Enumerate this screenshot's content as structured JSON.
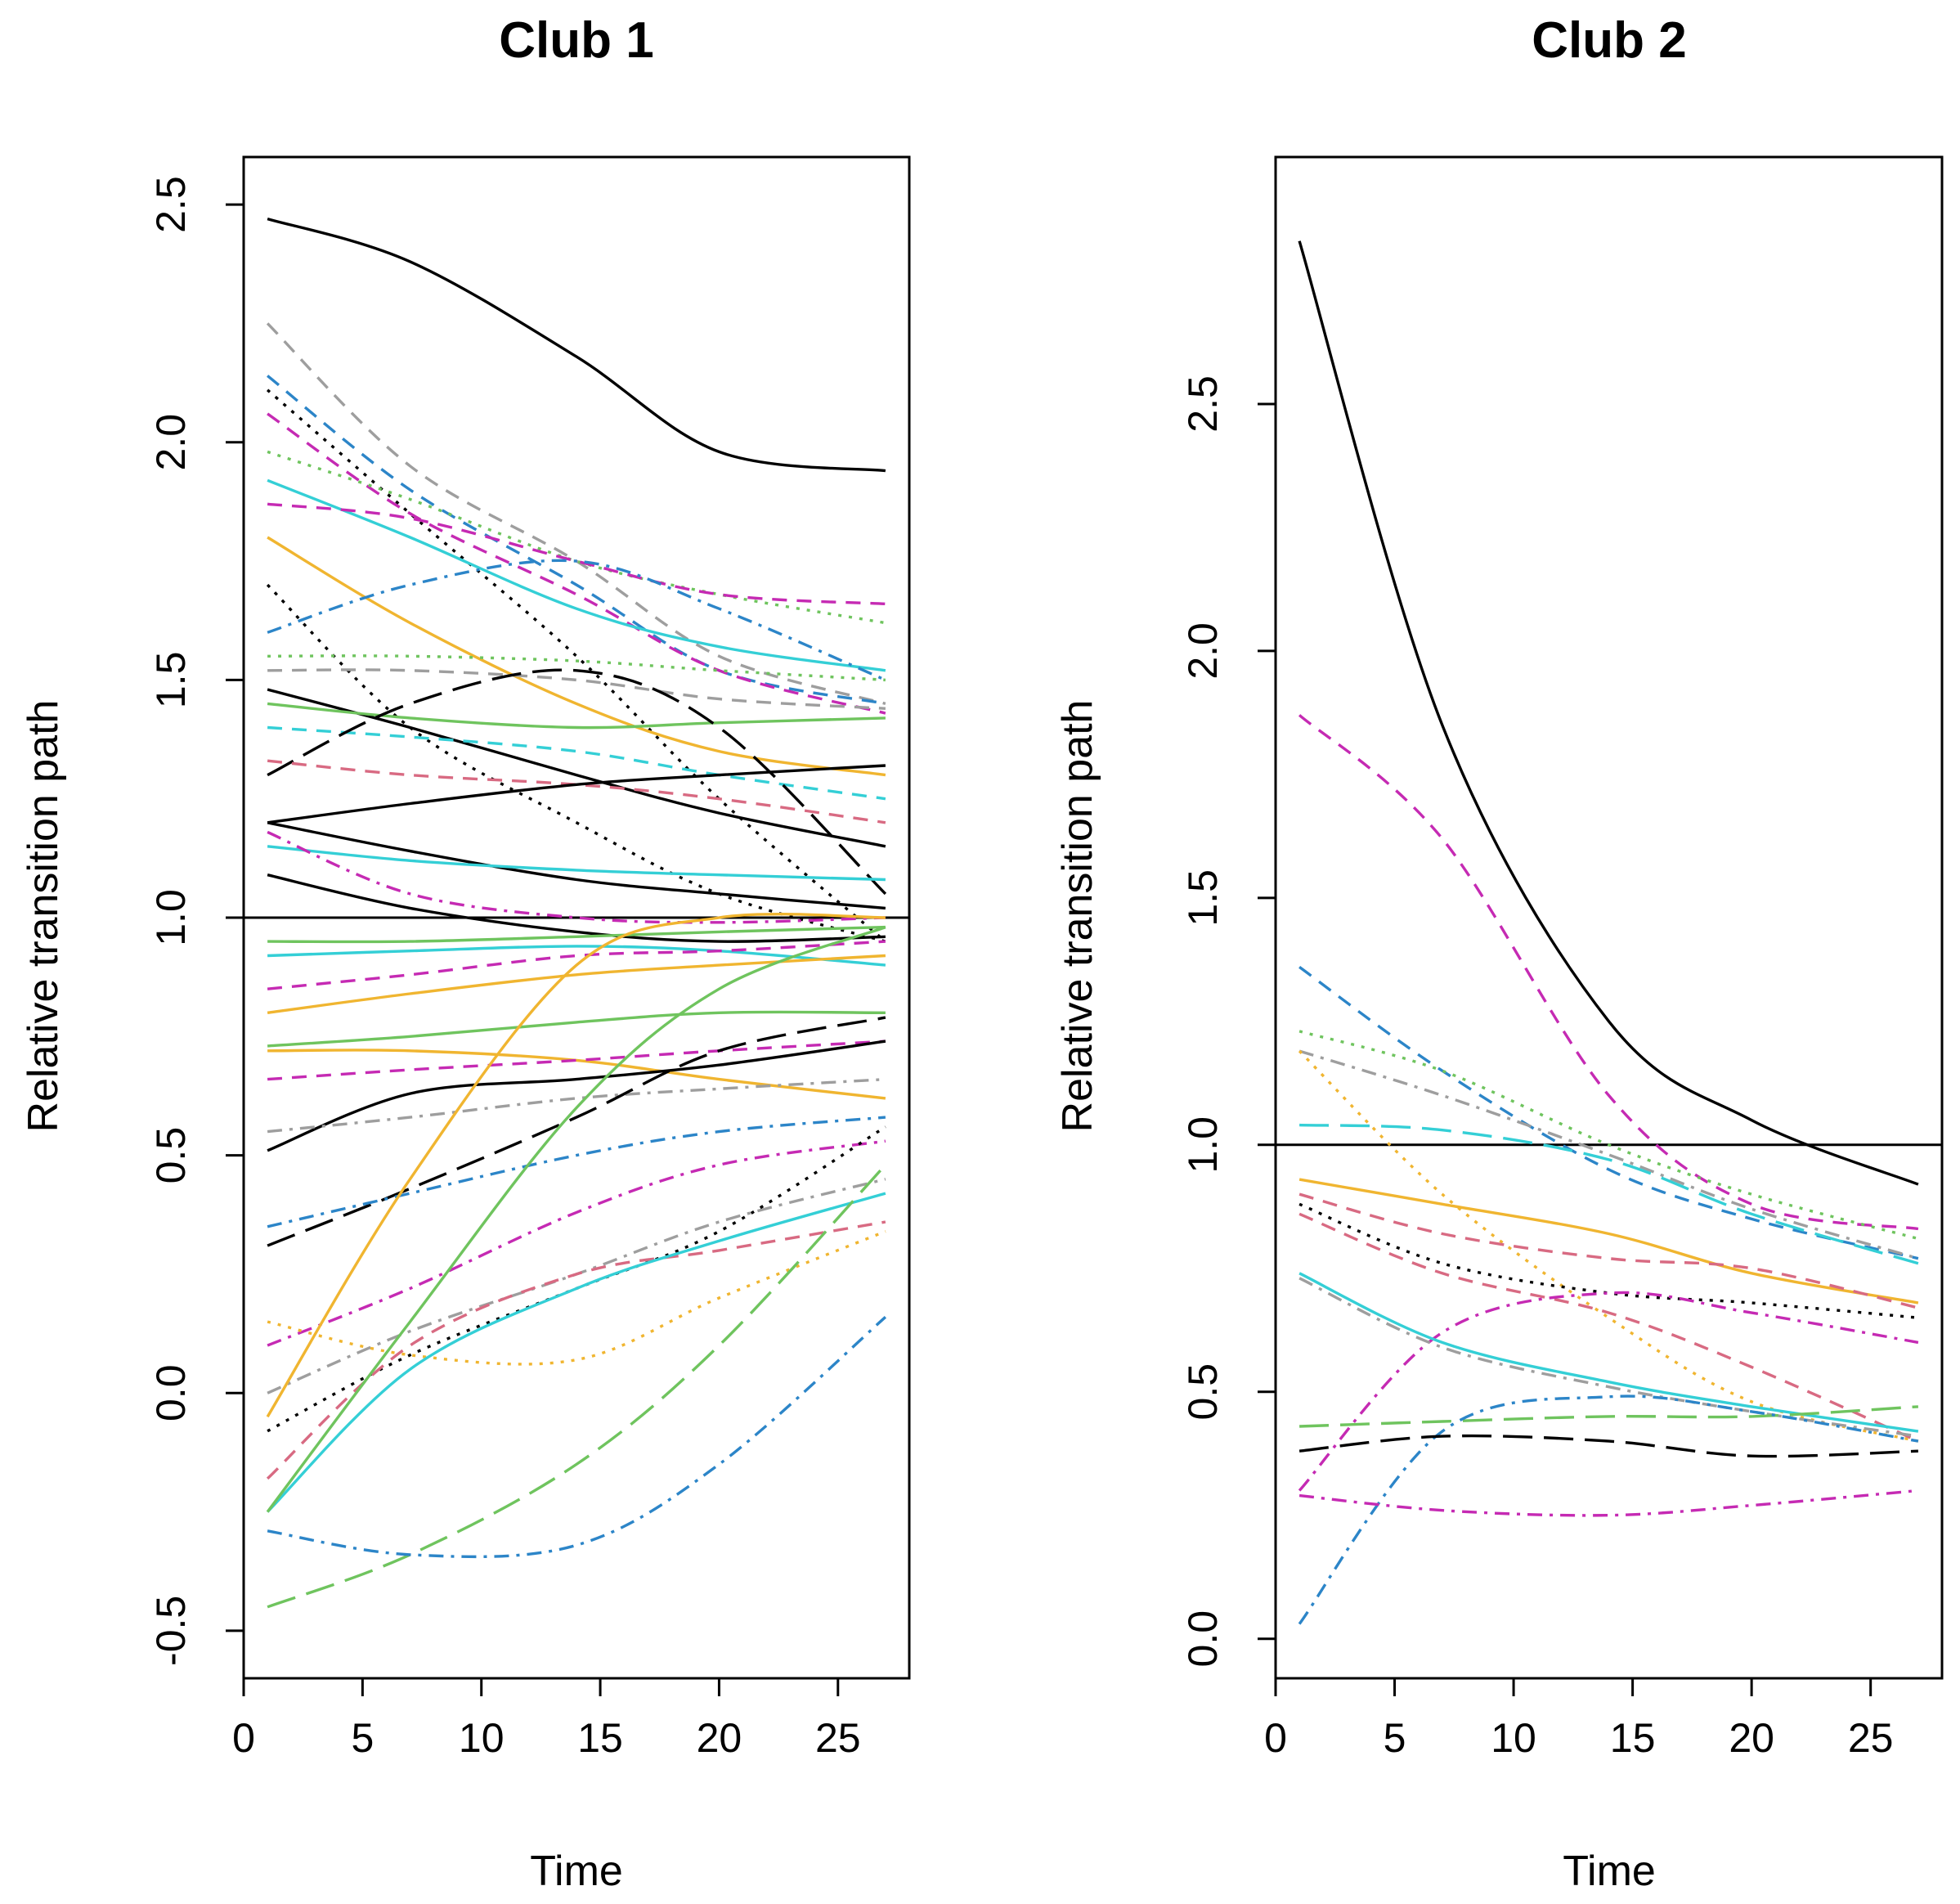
{
  "chart_data": [
    {
      "type": "line",
      "title": "Club 1",
      "xlabel": "Time",
      "ylabel": "Relative transition path",
      "xlim": [
        0,
        28
      ],
      "ylim": [
        -0.6,
        2.6
      ],
      "xticks": [
        0,
        5,
        10,
        15,
        20,
        25
      ],
      "yticks": [
        -0.5,
        0.0,
        0.5,
        1.0,
        1.5,
        2.0,
        2.5
      ],
      "xtick_labels": [
        "0",
        "5",
        "10",
        "15",
        "20",
        "25"
      ],
      "ytick_labels": [
        "-0.5",
        "0.0",
        "0.5",
        "1.0",
        "1.5",
        "2.0",
        "2.5"
      ],
      "reference_line": 1.0,
      "grid": false,
      "legend": "none",
      "x": [
        1,
        7,
        14,
        20,
        27
      ],
      "series": [
        {
          "values": [
            2.47,
            2.38,
            2.18,
            1.98,
            1.94
          ],
          "color": "#000000",
          "dash": "solid"
        },
        {
          "values": [
            2.25,
            1.95,
            1.75,
            1.55,
            1.45
          ],
          "color": "#9e9e9e",
          "dash": "dash"
        },
        {
          "values": [
            2.14,
            1.9,
            1.7,
            1.52,
            1.45
          ],
          "color": "#2c85c8",
          "dash": "dash"
        },
        {
          "values": [
            2.11,
            1.85,
            1.55,
            1.25,
            0.95
          ],
          "color": "#000000",
          "dash": "dot"
        },
        {
          "values": [
            2.06,
            1.85,
            1.68,
            1.52,
            1.43
          ],
          "color": "#c52ab3",
          "dash": "dash"
        },
        {
          "values": [
            1.98,
            1.88,
            1.75,
            1.68,
            1.62
          ],
          "color": "#6fc45e",
          "dash": "dot"
        },
        {
          "values": [
            1.92,
            1.8,
            1.65,
            1.57,
            1.52
          ],
          "color": "#34cfd6",
          "dash": "solid"
        },
        {
          "values": [
            1.87,
            1.84,
            1.75,
            1.68,
            1.66
          ],
          "color": "#c52ab3",
          "dash": "dash"
        },
        {
          "values": [
            1.8,
            1.62,
            1.45,
            1.35,
            1.3
          ],
          "color": "#f0b530",
          "dash": "solid"
        },
        {
          "values": [
            1.7,
            1.4,
            1.2,
            1.05,
            0.95
          ],
          "color": "#000000",
          "dash": "dot"
        },
        {
          "values": [
            1.6,
            1.7,
            1.75,
            1.65,
            1.5
          ],
          "color": "#2c85c8",
          "dash": "dashdot"
        },
        {
          "values": [
            1.52,
            1.52,
            1.5,
            1.46,
            1.44
          ],
          "color": "#9e9e9e",
          "dash": "dash"
        },
        {
          "values": [
            1.55,
            1.55,
            1.54,
            1.52,
            1.5
          ],
          "color": "#6fc45e",
          "dash": "dot"
        },
        {
          "values": [
            1.48,
            1.4,
            1.3,
            1.22,
            1.15
          ],
          "color": "#000000",
          "dash": "solid"
        },
        {
          "values": [
            1.45,
            1.42,
            1.4,
            1.41,
            1.42
          ],
          "color": "#6fc45e",
          "dash": "solid"
        },
        {
          "values": [
            1.4,
            1.38,
            1.35,
            1.3,
            1.25
          ],
          "color": "#34cfd6",
          "dash": "dash"
        },
        {
          "values": [
            1.3,
            1.45,
            1.52,
            1.4,
            1.05
          ],
          "color": "#000000",
          "dash": "longdash"
        },
        {
          "values": [
            1.33,
            1.3,
            1.28,
            1.25,
            1.2
          ],
          "color": "#d86a82",
          "dash": "dash"
        },
        {
          "values": [
            1.2,
            1.24,
            1.28,
            1.3,
            1.32
          ],
          "color": "#000000",
          "dash": "solid"
        },
        {
          "values": [
            1.2,
            1.14,
            1.08,
            1.05,
            1.02
          ],
          "color": "#000000",
          "dash": "solid"
        },
        {
          "values": [
            1.15,
            1.12,
            1.1,
            1.09,
            1.08
          ],
          "color": "#34cfd6",
          "dash": "solid"
        },
        {
          "values": [
            1.18,
            1.05,
            1.0,
            0.99,
            1.0
          ],
          "color": "#c52ab3",
          "dash": "dashdot"
        },
        {
          "values": [
            1.09,
            1.02,
            0.97,
            0.95,
            0.96
          ],
          "color": "#000000",
          "dash": "solid"
        },
        {
          "values": [
            0.95,
            0.95,
            0.96,
            0.97,
            0.98
          ],
          "color": "#6fc45e",
          "dash": "solid"
        },
        {
          "values": [
            0.92,
            0.93,
            0.94,
            0.93,
            0.9
          ],
          "color": "#34cfd6",
          "dash": "solid"
        },
        {
          "values": [
            0.85,
            0.88,
            0.92,
            0.93,
            0.95
          ],
          "color": "#c52ab3",
          "dash": "dash"
        },
        {
          "values": [
            0.8,
            0.84,
            0.88,
            0.9,
            0.92
          ],
          "color": "#f0b530",
          "dash": "solid"
        },
        {
          "values": [
            0.73,
            0.75,
            0.78,
            0.8,
            0.8
          ],
          "color": "#6fc45e",
          "dash": "solid"
        },
        {
          "values": [
            0.72,
            0.72,
            0.7,
            0.66,
            0.62
          ],
          "color": "#f0b530",
          "dash": "solid"
        },
        {
          "values": [
            0.66,
            0.68,
            0.7,
            0.72,
            0.74
          ],
          "color": "#c52ab3",
          "dash": "dash"
        },
        {
          "values": [
            0.51,
            0.63,
            0.66,
            0.69,
            0.74
          ],
          "color": "#000000",
          "dash": "solid"
        },
        {
          "values": [
            0.55,
            0.58,
            0.62,
            0.64,
            0.66
          ],
          "color": "#9e9e9e",
          "dash": "dashdot"
        },
        {
          "values": [
            0.31,
            0.43,
            0.58,
            0.72,
            0.79
          ],
          "color": "#000000",
          "dash": "longdash"
        },
        {
          "values": [
            0.35,
            0.42,
            0.5,
            0.55,
            0.58
          ],
          "color": "#2c85c8",
          "dash": "dashdot"
        },
        {
          "values": [
            0.1,
            0.22,
            0.38,
            0.48,
            0.53
          ],
          "color": "#c52ab3",
          "dash": "dashdot"
        },
        {
          "values": [
            0.0,
            0.13,
            0.25,
            0.36,
            0.45
          ],
          "color": "#9e9e9e",
          "dash": "dashdot"
        },
        {
          "values": [
            -0.05,
            0.45,
            0.9,
            1.0,
            1.0
          ],
          "color": "#f0b530",
          "dash": "solid"
        },
        {
          "values": [
            -0.08,
            0.08,
            0.22,
            0.34,
            0.56
          ],
          "color": "#000000",
          "dash": "dot"
        },
        {
          "values": [
            0.15,
            0.08,
            0.07,
            0.2,
            0.34
          ],
          "color": "#f0b530",
          "dash": "dot"
        },
        {
          "values": [
            -0.18,
            0.1,
            0.25,
            0.3,
            0.36
          ],
          "color": "#d86a82",
          "dash": "dash"
        },
        {
          "values": [
            -0.25,
            0.05,
            0.22,
            0.32,
            0.42
          ],
          "color": "#34cfd6",
          "dash": "solid"
        },
        {
          "values": [
            -0.25,
            0.15,
            0.6,
            0.85,
            0.98
          ],
          "color": "#6fc45e",
          "dash": "solid"
        },
        {
          "values": [
            -0.45,
            -0.34,
            -0.15,
            0.1,
            0.48
          ],
          "color": "#6fc45e",
          "dash": "longdash"
        },
        {
          "values": [
            -0.29,
            -0.34,
            -0.32,
            -0.15,
            0.16
          ],
          "color": "#2c85c8",
          "dash": "dashdot"
        }
      ]
    },
    {
      "type": "line",
      "title": "Club 2",
      "xlabel": "Time",
      "ylabel": "Relative transition path",
      "xlim": [
        0,
        28
      ],
      "ylim": [
        -0.08,
        3.0
      ],
      "xticks": [
        0,
        5,
        10,
        15,
        20,
        25
      ],
      "yticks": [
        0.0,
        0.5,
        1.0,
        1.5,
        2.0,
        2.5
      ],
      "xtick_labels": [
        "0",
        "5",
        "10",
        "15",
        "20",
        "25"
      ],
      "ytick_labels": [
        "0.0",
        "0.5",
        "1.0",
        "1.5",
        "2.0",
        "2.5"
      ],
      "reference_line": 1.0,
      "grid": false,
      "legend": "none",
      "x": [
        1,
        7,
        14,
        20,
        27
      ],
      "series": [
        {
          "values": [
            2.83,
            1.85,
            1.25,
            1.05,
            0.92
          ],
          "color": "#000000",
          "dash": "solid"
        },
        {
          "values": [
            1.87,
            1.62,
            1.1,
            0.88,
            0.83
          ],
          "color": "#c52ab3",
          "dash": "dash"
        },
        {
          "values": [
            1.36,
            1.15,
            0.95,
            0.85,
            0.77
          ],
          "color": "#2c85c8",
          "dash": "dash"
        },
        {
          "values": [
            1.23,
            1.15,
            1.0,
            0.9,
            0.81
          ],
          "color": "#6fc45e",
          "dash": "dot"
        },
        {
          "values": [
            1.19,
            1.1,
            0.98,
            0.87,
            0.77
          ],
          "color": "#9e9e9e",
          "dash": "dashdot"
        },
        {
          "values": [
            1.19,
            0.9,
            0.65,
            0.48,
            0.4
          ],
          "color": "#f0b530",
          "dash": "dot"
        },
        {
          "values": [
            1.04,
            1.03,
            0.97,
            0.86,
            0.76
          ],
          "color": "#34cfd6",
          "dash": "longdash"
        },
        {
          "values": [
            0.93,
            0.88,
            0.82,
            0.74,
            0.68
          ],
          "color": "#f0b530",
          "dash": "solid"
        },
        {
          "values": [
            0.9,
            0.82,
            0.77,
            0.75,
            0.67
          ],
          "color": "#d86a82",
          "dash": "dash"
        },
        {
          "values": [
            0.88,
            0.76,
            0.7,
            0.68,
            0.65
          ],
          "color": "#000000",
          "dash": "dot"
        },
        {
          "values": [
            0.86,
            0.74,
            0.66,
            0.55,
            0.4
          ],
          "color": "#d86a82",
          "dash": "dash"
        },
        {
          "values": [
            0.3,
            0.62,
            0.7,
            0.66,
            0.6
          ],
          "color": "#c52ab3",
          "dash": "dashdot"
        },
        {
          "values": [
            0.74,
            0.6,
            0.52,
            0.47,
            0.42
          ],
          "color": "#34cfd6",
          "dash": "solid"
        },
        {
          "values": [
            0.73,
            0.59,
            0.51,
            0.46,
            0.41
          ],
          "color": "#9e9e9e",
          "dash": "dashdot"
        },
        {
          "values": [
            0.43,
            0.44,
            0.45,
            0.45,
            0.47
          ],
          "color": "#6fc45e",
          "dash": "longdash"
        },
        {
          "values": [
            0.03,
            0.42,
            0.49,
            0.46,
            0.4
          ],
          "color": "#2c85c8",
          "dash": "dashdot"
        },
        {
          "values": [
            0.38,
            0.41,
            0.4,
            0.37,
            0.38
          ],
          "color": "#000000",
          "dash": "longdash"
        },
        {
          "values": [
            0.29,
            0.26,
            0.25,
            0.27,
            0.3
          ],
          "color": "#c52ab3",
          "dash": "dashdot"
        }
      ]
    }
  ]
}
